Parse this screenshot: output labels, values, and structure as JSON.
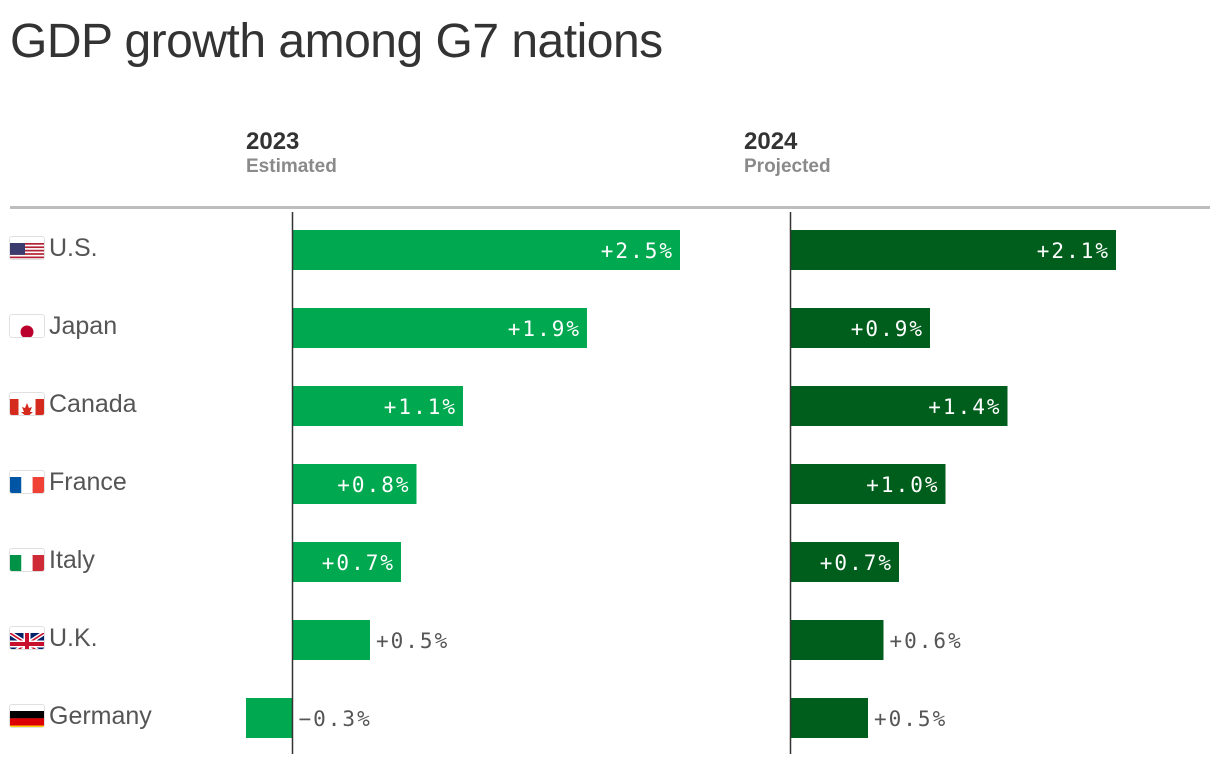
{
  "title": "GDP growth among G7 nations",
  "colors": {
    "y2023": "#00a84f",
    "y2024": "#005e1c",
    "label_inside": "#ffffff",
    "label_outside": "#555555",
    "axis": "#333333"
  },
  "chart_data": {
    "type": "bar",
    "orientation": "horizontal",
    "title": "GDP growth among G7 nations",
    "categories": [
      "U.S.",
      "Japan",
      "Canada",
      "France",
      "Italy",
      "U.K.",
      "Germany"
    ],
    "flags": [
      "us-flag-icon",
      "japan-flag-icon",
      "canada-flag-icon",
      "france-flag-icon",
      "italy-flag-icon",
      "uk-flag-icon",
      "germany-flag-icon"
    ],
    "series": [
      {
        "name": "2023",
        "subtitle": "Estimated",
        "values": [
          2.5,
          1.9,
          1.1,
          0.8,
          0.7,
          0.5,
          -0.3
        ],
        "labels": [
          "+2.5%",
          "+1.9%",
          "+1.1%",
          "+0.8%",
          "+0.7%",
          "+0.5%",
          "−0.3%"
        ]
      },
      {
        "name": "2024",
        "subtitle": "Projected",
        "values": [
          2.1,
          0.9,
          1.4,
          1.0,
          0.7,
          0.6,
          0.5
        ],
        "labels": [
          "+2.1%",
          "+0.9%",
          "+1.4%",
          "+1.0%",
          "+0.7%",
          "+0.6%",
          "+0.5%"
        ]
      }
    ],
    "unit": "%",
    "grid": false,
    "legend": "column headers at top"
  }
}
